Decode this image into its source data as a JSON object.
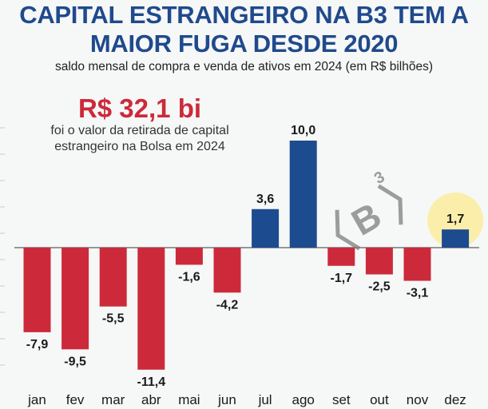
{
  "chart_data": {
    "type": "bar",
    "title": "CAPITAL ESTRANGEIRO NA B3 TEM A MAIOR FUGA DESDE 2020",
    "title_lines": [
      "CAPITAL ESTRANGEIRO NA B3 TEM A",
      "MAIOR FUGA DESDE 2020"
    ],
    "subtitle": "saldo mensal de compra e venda de ativos em 2024 (em R$ bilhões)",
    "annotation": {
      "value": "R$ 32,1 bi",
      "text_lines": [
        "foi o valor da retirada de capital",
        "estrangeiro na Bolsa em 2024"
      ]
    },
    "logo_text": "B3",
    "categories": [
      "jan",
      "fev",
      "mar",
      "abr",
      "mai",
      "jun",
      "jul",
      "ago",
      "set",
      "out",
      "nov",
      "dez"
    ],
    "values": [
      -7.9,
      -9.5,
      -5.5,
      -11.4,
      -1.6,
      -4.2,
      3.6,
      10.0,
      -1.7,
      -2.5,
      -3.1,
      1.7
    ],
    "labels": [
      "-7,9",
      "-9,5",
      "-5,5",
      "-11,4",
      "-1,6",
      "-4,2",
      "3,6",
      "10,0",
      "-1,7",
      "-2,5",
      "-3,1",
      "1,7"
    ],
    "highlighted_category": "dez",
    "colors": {
      "positive": "#1d4b8f",
      "negative": "#cc2a3a",
      "highlight": "#fbeeaa",
      "axis": "#777777"
    },
    "xlabel": "",
    "ylabel": "",
    "ylim": [
      -11.4,
      10.0
    ]
  }
}
